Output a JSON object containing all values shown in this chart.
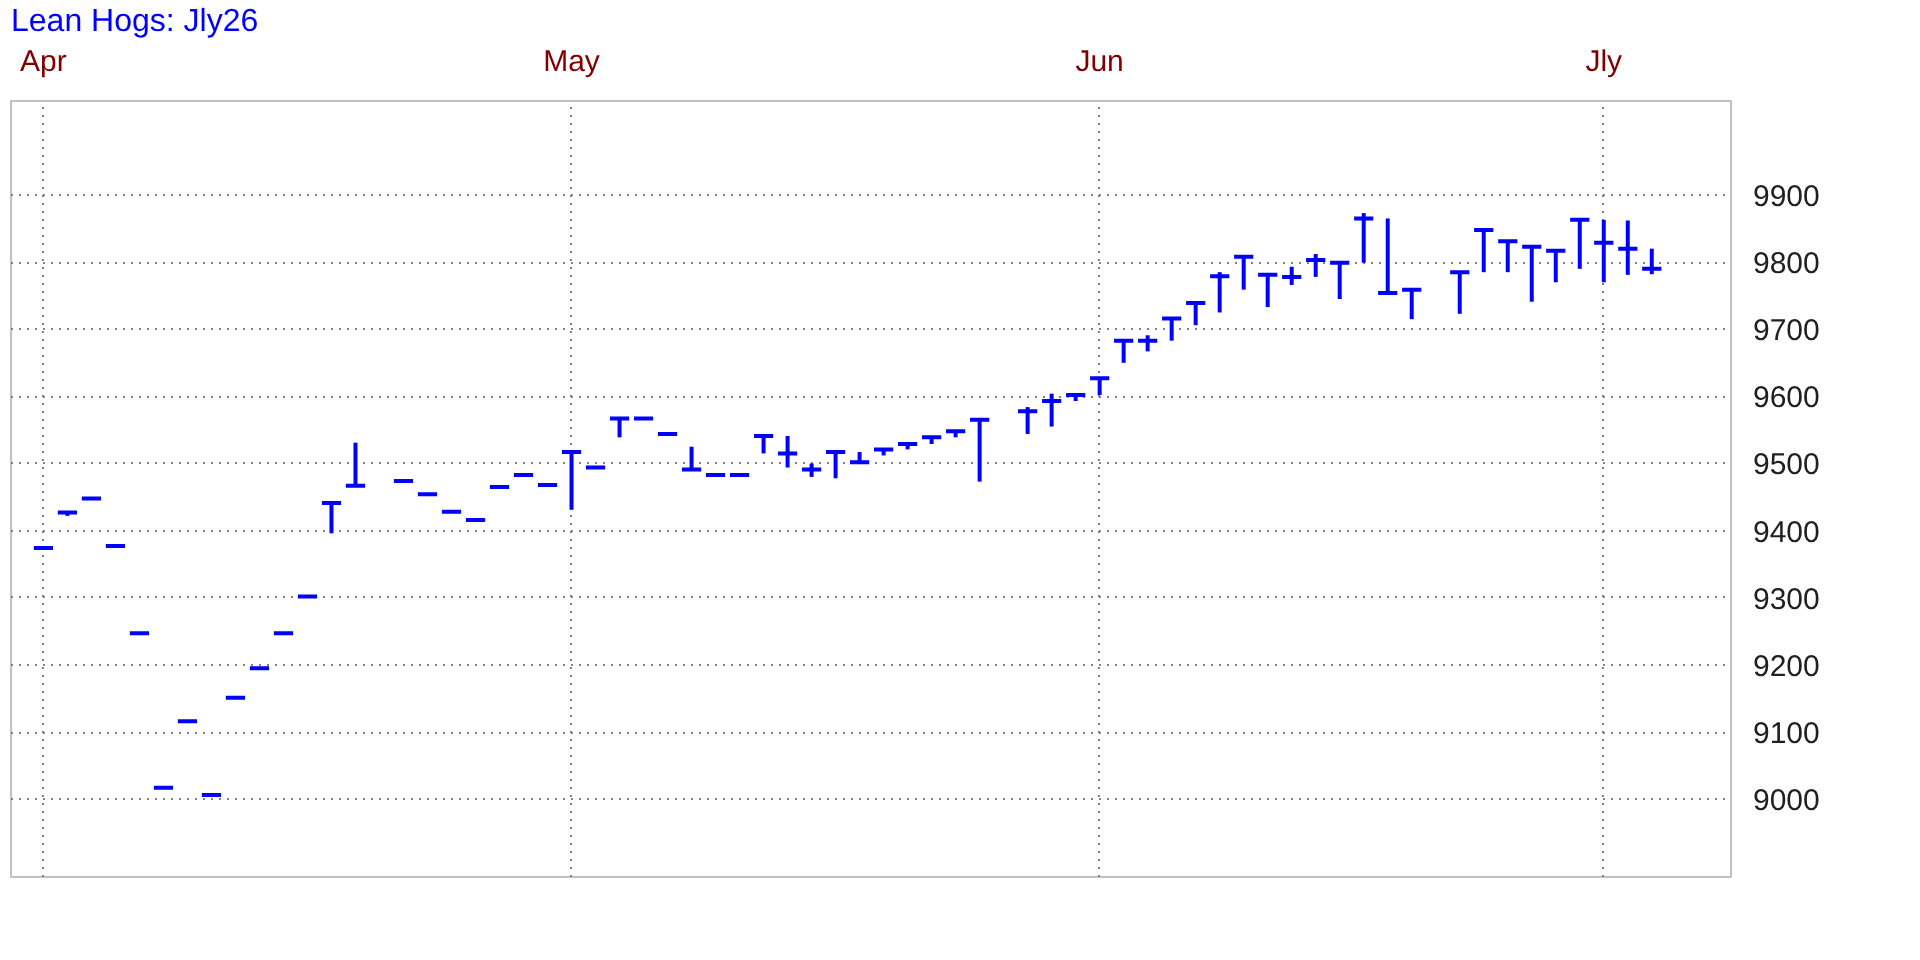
{
  "chart_data": {
    "type": "candlestick",
    "title": "Lean Hogs: Jly26",
    "categories": [
      "Apr",
      null,
      null,
      null,
      null,
      null,
      null,
      null,
      null,
      null,
      null,
      null,
      null,
      null,
      null,
      null,
      null,
      null,
      null,
      null,
      null,
      null,
      "May",
      null,
      null,
      null,
      null,
      null,
      null,
      null,
      null,
      null,
      null,
      null,
      null,
      null,
      null,
      null,
      null,
      null,
      null,
      null,
      null,
      null,
      "Jun",
      null,
      null,
      null,
      null,
      null,
      null,
      null,
      null,
      null,
      null,
      null,
      null,
      null,
      null,
      null,
      null,
      null,
      null,
      null,
      null,
      "Jly",
      null,
      null
    ],
    "color": "#0000ff",
    "ohlc": [
      [
        9374,
        9374,
        9374,
        9374
      ],
      [
        9427,
        9427,
        9422,
        9427
      ],
      [
        9448,
        9448,
        9448,
        9448
      ],
      [
        9377,
        9377,
        9377,
        9377
      ],
      [
        9247,
        9247,
        9247,
        9247
      ],
      [
        9017,
        9017,
        9015,
        9017
      ],
      [
        9116,
        9116,
        9116,
        9116
      ],
      [
        9006,
        9006,
        9006,
        9006
      ],
      [
        9151,
        9151,
        9151,
        9151
      ],
      [
        9195,
        9195,
        9195,
        9195
      ],
      [
        9247,
        9247,
        9247,
        9247
      ],
      [
        9302,
        9302,
        9302,
        9302
      ],
      [
        9441,
        9441,
        9396,
        9441
      ],
      [
        9467,
        9531,
        9467,
        9467
      ],
      null,
      [
        9474,
        9474,
        9474,
        9474
      ],
      [
        9454,
        9454,
        9454,
        9454
      ],
      [
        9428,
        9428,
        9428,
        9428
      ],
      [
        9416,
        9416,
        9416,
        9416
      ],
      [
        9465,
        9465,
        9465,
        9465
      ],
      [
        9483,
        9483,
        9483,
        9483
      ],
      [
        9468,
        9468,
        9468,
        9468
      ],
      [
        9517,
        9517,
        9431,
        9517
      ],
      [
        9494,
        9494,
        9494,
        9494
      ],
      [
        9567,
        9567,
        9539,
        9567
      ],
      [
        9567,
        9567,
        9567,
        9567
      ],
      [
        9544,
        9544,
        9544,
        9544
      ],
      [
        9491,
        9525,
        9491,
        9491
      ],
      [
        9483,
        9483,
        9483,
        9483
      ],
      [
        9483,
        9483,
        9483,
        9483
      ],
      [
        9541,
        9541,
        9515,
        9541
      ],
      [
        9515,
        9541,
        9494,
        9515
      ],
      [
        9491,
        9500,
        9480,
        9491
      ],
      [
        9517,
        9517,
        9478,
        9517
      ],
      [
        9502,
        9517,
        9502,
        9502
      ],
      [
        9521,
        9521,
        9512,
        9521
      ],
      [
        9529,
        9529,
        9521,
        9529
      ],
      [
        9539,
        9539,
        9529,
        9539
      ],
      [
        9548,
        9548,
        9539,
        9548
      ],
      [
        9565,
        9565,
        9473,
        9565
      ],
      null,
      [
        9578,
        9584,
        9544,
        9578
      ],
      [
        9593,
        9604,
        9555,
        9593
      ],
      [
        9602,
        9602,
        9593,
        9602
      ],
      [
        9627,
        9627,
        9602,
        9627
      ],
      [
        9683,
        9683,
        9650,
        9683
      ],
      [
        9683,
        9691,
        9667,
        9683
      ],
      [
        9716,
        9716,
        9683,
        9716
      ],
      [
        9739,
        9739,
        9706,
        9739
      ],
      [
        9779,
        9785,
        9725,
        9779
      ],
      [
        9808,
        9808,
        9759,
        9808
      ],
      [
        9781,
        9783,
        9733,
        9781
      ],
      [
        9778,
        9793,
        9766,
        9778
      ],
      [
        9803,
        9812,
        9778,
        9803
      ],
      [
        9799,
        9799,
        9745,
        9799
      ],
      [
        9865,
        9873,
        9799,
        9865
      ],
      [
        9754,
        9865,
        9754,
        9754
      ],
      [
        9759,
        9759,
        9715,
        9759
      ],
      null,
      [
        9785,
        9785,
        9723,
        9785
      ],
      [
        9848,
        9848,
        9785,
        9848
      ],
      [
        9831,
        9831,
        9785,
        9831
      ],
      [
        9823,
        9823,
        9741,
        9823
      ],
      [
        9817,
        9817,
        9770,
        9817
      ],
      [
        9863,
        9863,
        9790,
        9863
      ],
      [
        9829,
        9863,
        9770,
        9829
      ],
      [
        9820,
        9862,
        9781,
        9820
      ],
      [
        9790,
        9820,
        9782,
        9790
      ]
    ],
    "ylim": [
      8884,
      10040
    ],
    "yticks": [
      9000,
      9100,
      9200,
      9300,
      9400,
      9500,
      9600,
      9700,
      9800,
      9900
    ],
    "grid": true
  }
}
